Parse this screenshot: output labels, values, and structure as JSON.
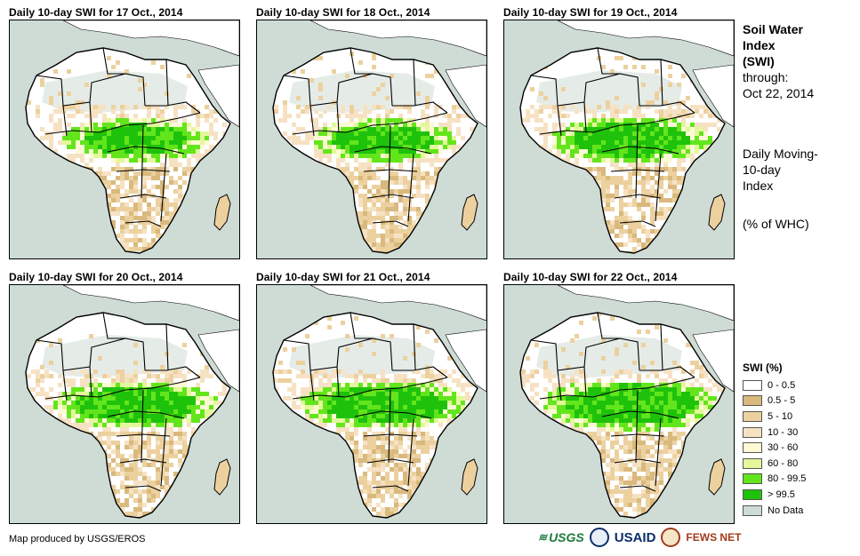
{
  "panels": [
    {
      "title": "Daily 10-day SWI for 17 Oct., 2014",
      "wet_level": 0.62
    },
    {
      "title": "Daily 10-day SWI for 18 Oct., 2014",
      "wet_level": 0.6
    },
    {
      "title": "Daily 10-day SWI for 19 Oct., 2014",
      "wet_level": 0.7
    },
    {
      "title": "Daily 10-day SWI for 20 Oct., 2014",
      "wet_level": 0.72
    },
    {
      "title": "Daily 10-day SWI for 21 Oct., 2014",
      "wet_level": 0.74
    },
    {
      "title": "Daily 10-day SWI for 22 Oct., 2014",
      "wet_level": 0.8
    }
  ],
  "side_info": {
    "title_line1": "Soil Water",
    "title_line2": "Index",
    "title_line3": "(SWI)",
    "through_label": "through:",
    "through_date": "Oct 22, 2014",
    "desc_line1": "Daily Moving-",
    "desc_line2": "10-day",
    "desc_line3": "Index",
    "units": "(% of WHC)"
  },
  "legend": {
    "title": "SWI (%)",
    "items": [
      {
        "label": "0 - 0.5",
        "color": "#ffffff"
      },
      {
        "label": "0.5 - 5",
        "color": "#d9b97d"
      },
      {
        "label": "5 - 10",
        "color": "#ecd19f"
      },
      {
        "label": "10 - 30",
        "color": "#f6e2c3"
      },
      {
        "label": "30 - 60",
        "color": "#fcfad4"
      },
      {
        "label": "60 - 80",
        "color": "#e3f79b"
      },
      {
        "label": "80 - 99.5",
        "color": "#63e51c"
      },
      {
        "label": "> 99.5",
        "color": "#1fc20b"
      },
      {
        "label": "No Data",
        "color": "#cfdcd6"
      }
    ]
  },
  "credit": "Map produced by USGS/EROS",
  "logos": {
    "usgs": "USGS",
    "usaid": "USAID",
    "fews": "FEWS NET"
  }
}
